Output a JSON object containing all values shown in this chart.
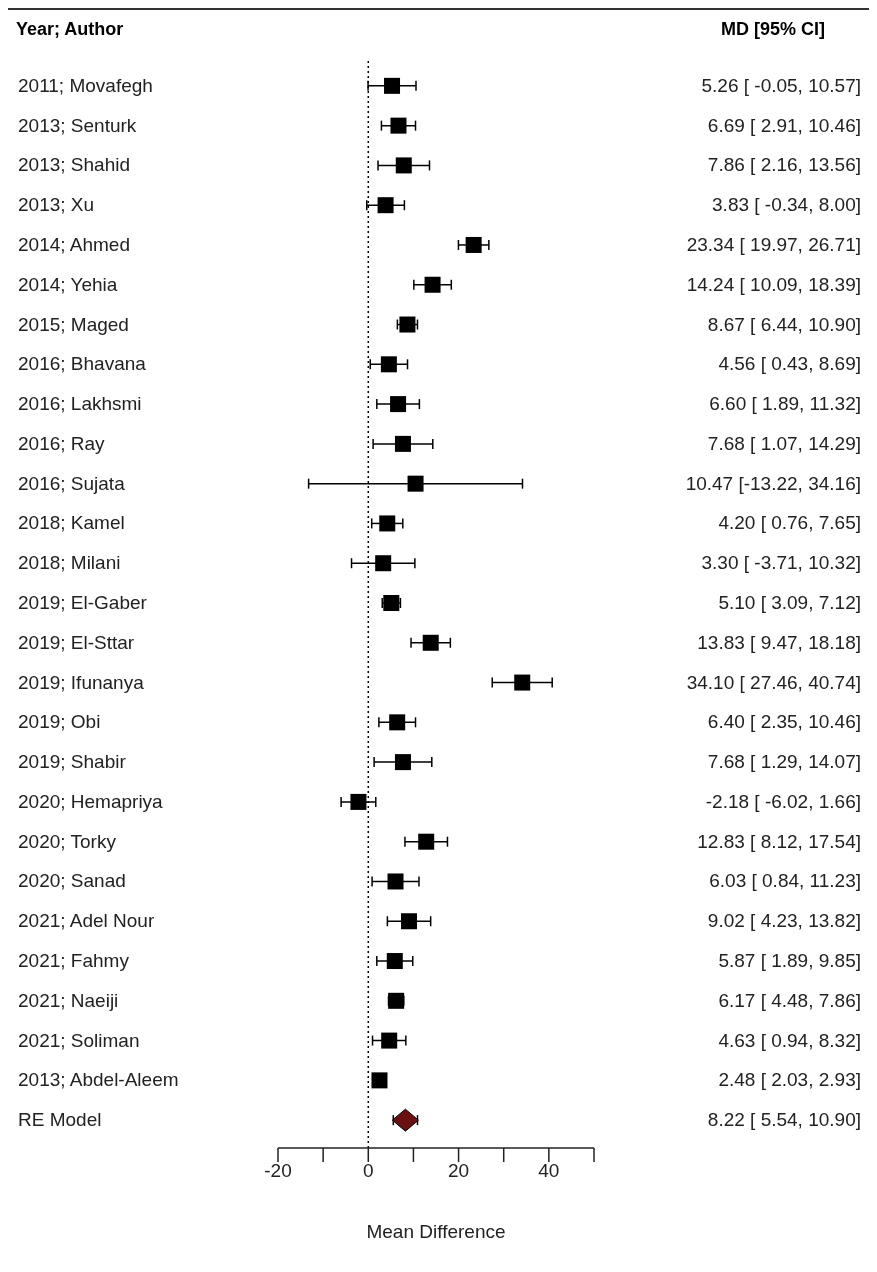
{
  "chart_data": {
    "type": "scatter",
    "orientation": "horizontal",
    "ylabel": "Year; Author",
    "xlabel": "Mean Difference",
    "annotations": [
      "MD [95% CI]"
    ],
    "categories": [
      "2011; Movafegh",
      "2013; Senturk",
      "2013; Shahid",
      "2013; Xu",
      "2014; Ahmed",
      "2014; Yehia",
      "2015; Maged",
      "2016; Bhavana",
      "2016; Lakhsmi",
      "2016; Ray",
      "2016; Sujata",
      "2018; Kamel",
      "2018; Milani",
      "2019; El-Gaber",
      "2019; El-Sttar",
      "2019; Ifunanya",
      "2019; Obi",
      "2019; Shabir",
      "2020; Hemapriya",
      "2020; Torky",
      "2020; Sanad",
      "2021; Adel Nour",
      "2021; Fahmy",
      "2021; Naeiji",
      "2021; Soliman",
      "2013; Abdel-Aleem",
      "RE Model"
    ],
    "series": [
      {
        "marker": "square",
        "color": "#000000",
        "values": [
          5.26,
          6.69,
          7.86,
          3.83,
          23.34,
          14.24,
          8.67,
          4.56,
          6.6,
          7.68,
          10.47,
          4.2,
          3.3,
          5.1,
          13.83,
          34.1,
          6.4,
          7.68,
          -2.18,
          12.83,
          6.03,
          9.02,
          5.87,
          6.17,
          4.63,
          2.48,
          null
        ],
        "errors": [
          [
            -0.05,
            10.57
          ],
          [
            2.91,
            10.46
          ],
          [
            2.16,
            13.56
          ],
          [
            -0.34,
            8.0
          ],
          [
            19.97,
            26.71
          ],
          [
            10.09,
            18.39
          ],
          [
            6.44,
            10.9
          ],
          [
            0.43,
            8.69
          ],
          [
            1.89,
            11.32
          ],
          [
            1.07,
            14.29
          ],
          [
            -13.22,
            34.16
          ],
          [
            0.76,
            7.65
          ],
          [
            -3.71,
            10.32
          ],
          [
            3.09,
            7.12
          ],
          [
            9.47,
            18.18
          ],
          [
            27.46,
            40.74
          ],
          [
            2.35,
            10.46
          ],
          [
            1.29,
            14.07
          ],
          [
            -6.02,
            1.66
          ],
          [
            8.12,
            17.54
          ],
          [
            0.84,
            11.23
          ],
          [
            4.23,
            13.82
          ],
          [
            1.89,
            9.85
          ],
          [
            4.48,
            7.86
          ],
          [
            0.94,
            8.32
          ],
          null,
          null
        ],
        "value_labels": [
          "5.26 [ -0.05, 10.57]",
          "6.69 [ 2.91, 10.46]",
          "7.86 [ 2.16, 13.56]",
          "3.83 [ -0.34, 8.00]",
          "23.34 [ 19.97, 26.71]",
          "14.24 [ 10.09, 18.39]",
          "8.67 [ 6.44, 10.90]",
          "4.56 [ 0.43, 8.69]",
          "6.60 [ 1.89, 11.32]",
          "7.68 [ 1.07, 14.29]",
          "10.47 [-13.22, 34.16]",
          "4.20 [ 0.76, 7.65]",
          "3.30 [ -3.71, 10.32]",
          "5.10 [ 3.09, 7.12]",
          "13.83 [ 9.47, 18.18]",
          "34.10 [ 27.46, 40.74]",
          "6.40 [ 2.35, 10.46]",
          "7.68 [ 1.29, 14.07]",
          "-2.18 [ -6.02, 1.66]",
          "12.83 [ 8.12, 17.54]",
          "6.03 [ 0.84, 11.23]",
          "9.02 [ 4.23, 13.82]",
          "5.87 [ 1.89, 9.85]",
          "6.17 [ 4.48, 7.86]",
          "4.63 [ 0.94, 8.32]",
          "2.48 [ 2.03, 2.93]",
          "8.22 [ 5.54, 10.90]"
        ]
      },
      {
        "marker": "diamond",
        "color": "#6b1010",
        "values": [
          null,
          null,
          null,
          null,
          null,
          null,
          null,
          null,
          null,
          null,
          null,
          null,
          null,
          null,
          null,
          null,
          null,
          null,
          null,
          null,
          null,
          null,
          null,
          null,
          null,
          null,
          8.22
        ],
        "errors": [
          null,
          null,
          null,
          null,
          null,
          null,
          null,
          null,
          null,
          null,
          null,
          null,
          null,
          null,
          null,
          null,
          null,
          null,
          null,
          null,
          null,
          null,
          null,
          null,
          null,
          null,
          [
            5.54,
            10.9
          ]
        ]
      }
    ],
    "xlim": [
      -20,
      50
    ],
    "xticks": [
      -20,
      {
        "value": -10,
        "label": null
      },
      0,
      {
        "value": 10,
        "label": null
      },
      20,
      {
        "value": 30,
        "label": null
      },
      40,
      {
        "value": 50,
        "label": null
      }
    ],
    "ref_lines": [
      {
        "axis": "x",
        "value": 0,
        "line_style": "dotted",
        "color": "#000000"
      }
    ],
    "grid": false,
    "legend": false
  }
}
